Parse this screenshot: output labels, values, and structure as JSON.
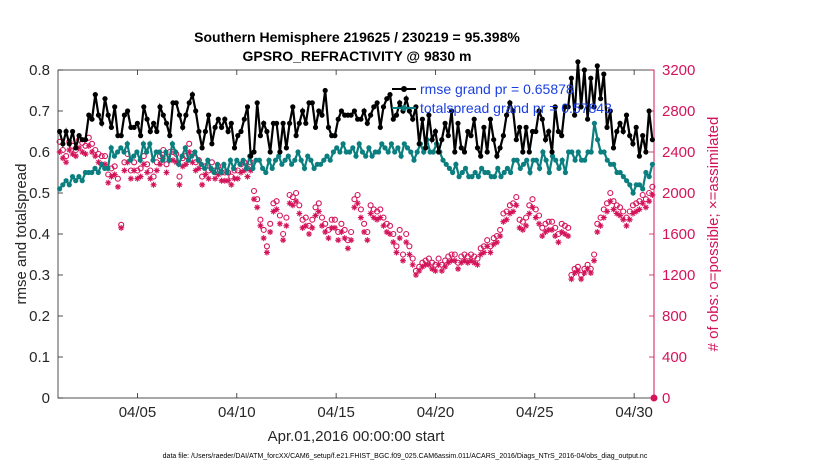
{
  "chart_data": {
    "type": "line",
    "title": "Southern Hemisphere 219625 / 230219 = 95.398%",
    "subtitle": "GPSRO_REFRACTIVITY @ 9830 m",
    "xlabel": "Apr.01,2016 00:00:00 start",
    "ylabel_left": "rmse and totalspread",
    "ylabel_right": "# of obs: o=possible; ×=assimilated",
    "ylim_left": [
      0,
      0.8
    ],
    "ylim_right": [
      0,
      3200
    ],
    "xlim_days": [
      1,
      31
    ],
    "yticks_left": [
      "0",
      "0.1",
      "0.2",
      "0.3",
      "0.4",
      "0.5",
      "0.6",
      "0.7",
      "0.8"
    ],
    "yticks_right": [
      "0",
      "400",
      "800",
      "1200",
      "1600",
      "2000",
      "2400",
      "2800",
      "3200"
    ],
    "xticks": [
      {
        "label": "04/05",
        "day": 5
      },
      {
        "label": "04/10",
        "day": 10
      },
      {
        "label": "04/15",
        "day": 15
      },
      {
        "label": "04/20",
        "day": 20
      },
      {
        "label": "04/25",
        "day": 25
      },
      {
        "label": "04/30",
        "day": 30
      }
    ],
    "legend": [
      {
        "label": "rmse grand pr = 0.65878",
        "color": "#000000"
      },
      {
        "label": "totalspread grand pr = 0.57843",
        "color": "#0b7f7f"
      }
    ],
    "series": [
      {
        "name": "rmse",
        "axis": "left",
        "color": "#000000",
        "values": [
          0.65,
          0.62,
          0.65,
          0.62,
          0.65,
          0.61,
          0.64,
          0.63,
          0.63,
          0.69,
          0.68,
          0.74,
          0.69,
          0.67,
          0.73,
          0.69,
          0.66,
          0.71,
          0.64,
          0.64,
          0.69,
          0.7,
          0.66,
          0.66,
          0.67,
          0.64,
          0.71,
          0.68,
          0.65,
          0.67,
          0.65,
          0.71,
          0.69,
          0.67,
          0.64,
          0.72,
          0.72,
          0.69,
          0.66,
          0.69,
          0.72,
          0.74,
          0.7,
          0.65,
          0.61,
          0.65,
          0.69,
          0.62,
          0.66,
          0.68,
          0.66,
          0.68,
          0.65,
          0.67,
          0.61,
          0.64,
          0.65,
          0.68,
          0.71,
          0.59,
          0.6,
          0.72,
          0.64,
          0.67,
          0.65,
          0.6,
          0.67,
          0.67,
          0.6,
          0.67,
          0.61,
          0.67,
          0.71,
          0.64,
          0.67,
          0.7,
          0.67,
          0.72,
          0.72,
          0.66,
          0.7,
          0.69,
          0.75,
          0.66,
          0.64,
          0.64,
          0.68,
          0.7,
          0.69,
          0.69,
          0.69,
          0.7,
          0.68,
          0.68,
          0.7,
          0.67,
          0.69,
          0.71,
          0.72,
          0.66,
          0.71,
          0.73,
          0.74,
          0.68,
          0.69,
          0.72,
          0.7,
          0.73,
          0.7,
          0.68,
          0.71,
          0.62,
          0.68,
          0.61,
          0.69,
          0.63,
          0.65,
          0.6,
          0.63,
          0.67,
          0.64,
          0.7,
          0.6,
          0.67,
          0.61,
          0.6,
          0.65,
          0.64,
          0.68,
          0.61,
          0.59,
          0.66,
          0.6,
          0.68,
          0.63,
          0.59,
          0.61,
          0.64,
          0.69,
          0.72,
          0.7,
          0.63,
          0.66,
          0.6,
          0.66,
          0.6,
          0.65,
          0.65,
          0.7,
          0.68,
          0.63,
          0.65,
          0.6,
          0.71,
          0.65,
          0.64,
          0.71,
          0.71,
          0.78,
          0.69,
          0.82,
          0.71,
          0.8,
          0.68,
          0.78,
          0.71,
          0.81,
          0.73,
          0.79,
          0.66,
          0.7,
          0.61,
          0.65,
          0.67,
          0.65,
          0.69,
          0.64,
          0.62,
          0.66,
          0.59,
          0.64,
          0.6,
          0.7,
          0.63
        ]
      },
      {
        "name": "totalspread",
        "axis": "left",
        "color": "#0b7f7f",
        "values": [
          0.51,
          0.52,
          0.53,
          0.52,
          0.54,
          0.53,
          0.54,
          0.53,
          0.55,
          0.55,
          0.55,
          0.56,
          0.55,
          0.57,
          0.56,
          0.56,
          0.61,
          0.59,
          0.6,
          0.61,
          0.6,
          0.62,
          0.58,
          0.59,
          0.6,
          0.58,
          0.62,
          0.6,
          0.62,
          0.58,
          0.6,
          0.6,
          0.58,
          0.6,
          0.58,
          0.62,
          0.6,
          0.57,
          0.59,
          0.61,
          0.58,
          0.59,
          0.6,
          0.58,
          0.57,
          0.56,
          0.58,
          0.56,
          0.55,
          0.57,
          0.55,
          0.57,
          0.55,
          0.58,
          0.56,
          0.58,
          0.57,
          0.58,
          0.56,
          0.59,
          0.56,
          0.58,
          0.58,
          0.56,
          0.55,
          0.58,
          0.56,
          0.58,
          0.59,
          0.57,
          0.58,
          0.59,
          0.57,
          0.58,
          0.6,
          0.58,
          0.56,
          0.59,
          0.58,
          0.56,
          0.57,
          0.57,
          0.58,
          0.59,
          0.58,
          0.6,
          0.61,
          0.6,
          0.62,
          0.6,
          0.6,
          0.61,
          0.59,
          0.62,
          0.6,
          0.59,
          0.61,
          0.59,
          0.6,
          0.6,
          0.62,
          0.61,
          0.6,
          0.62,
          0.6,
          0.61,
          0.59,
          0.62,
          0.61,
          0.6,
          0.58,
          0.6,
          0.62,
          0.6,
          0.63,
          0.6,
          0.6,
          0.62,
          0.6,
          0.58,
          0.57,
          0.56,
          0.55,
          0.57,
          0.54,
          0.55,
          0.56,
          0.54,
          0.54,
          0.55,
          0.54,
          0.56,
          0.55,
          0.55,
          0.54,
          0.54,
          0.56,
          0.54,
          0.55,
          0.56,
          0.55,
          0.58,
          0.58,
          0.56,
          0.57,
          0.58,
          0.55,
          0.58,
          0.58,
          0.56,
          0.6,
          0.58,
          0.55,
          0.59,
          0.58,
          0.56,
          0.58,
          0.55,
          0.6,
          0.6,
          0.58,
          0.6,
          0.58,
          0.58,
          0.6,
          0.6,
          0.67,
          0.63,
          0.6,
          0.6,
          0.58,
          0.57,
          0.57,
          0.55,
          0.55,
          0.54,
          0.53,
          0.52,
          0.5,
          0.52,
          0.52,
          0.51,
          0.55,
          0.54,
          0.57
        ]
      },
      {
        "name": "obs possible",
        "axis": "right",
        "color": "#d4145a",
        "marker": "o",
        "values": [
          2500,
          2420,
          2360,
          2500,
          2460,
          2420,
          2520,
          2490,
          2460,
          2540,
          2480,
          2420,
          2380,
          2360,
          2360,
          2180,
          2240,
          2260,
          2140,
          1690,
          2300,
          2380,
          2220,
          2300,
          2220,
          2240,
          2360,
          2280,
          2220,
          2160,
          2300,
          2360,
          2420,
          2280,
          2400,
          2400,
          2380,
          2160,
          2340,
          2360,
          2480,
          2380,
          2300,
          2320,
          2160,
          2260,
          2220,
          2300,
          2220,
          2260,
          2200,
          2200,
          2200,
          2160,
          2220,
          2220,
          2280,
          2300,
          2240,
          2300,
          2020,
          1940,
          1740,
          1640,
          1480,
          1700,
          1900,
          1920,
          1780,
          1600,
          1760,
          1980,
          1960,
          2000,
          1880,
          1740,
          1760,
          1680,
          1740,
          1860,
          1900,
          1760,
          1700,
          1640,
          1740,
          1740,
          1620,
          1700,
          1640,
          1540,
          1620,
          1940,
          1980,
          1840,
          1700,
          1620,
          1880,
          1840,
          1820,
          1840,
          1760,
          1700,
          1680,
          1600,
          1480,
          1640,
          1400,
          1600,
          1480,
          1360,
          1240,
          1280,
          1320,
          1340,
          1360,
          1320,
          1300,
          1360,
          1300,
          1340,
          1380,
          1400,
          1400,
          1320,
          1380,
          1400,
          1380,
          1400,
          1380,
          1360,
          1460,
          1480,
          1540,
          1480,
          1560,
          1580,
          1640,
          1800,
          1820,
          1880,
          1900,
          1960,
          1740,
          1720,
          1760,
          1880,
          1940,
          1840,
          1780,
          1660,
          1700,
          1720,
          1720,
          1660,
          1600,
          1700,
          1680,
          1660,
          1200,
          1260,
          1280,
          1200,
          1260,
          1300,
          1260,
          1400,
          1700,
          1760,
          1840,
          1900,
          2000,
          1920,
          1880,
          1860,
          1820,
          1760,
          1820,
          1880,
          1900,
          1920,
          1980,
          1940,
          2000,
          2060
        ]
      },
      {
        "name": "obs assimilated",
        "axis": "right",
        "color": "#d4145a",
        "marker": "*",
        "values": [
          2400,
          2340,
          2300,
          2420,
          2380,
          2360,
          2440,
          2400,
          2380,
          2460,
          2400,
          2360,
          2300,
          2280,
          2280,
          2100,
          2160,
          2180,
          2060,
          1660,
          2220,
          2300,
          2140,
          2220,
          2140,
          2160,
          2280,
          2200,
          2140,
          2080,
          2220,
          2280,
          2340,
          2200,
          2320,
          2320,
          2300,
          2080,
          2260,
          2280,
          2400,
          2300,
          2220,
          2240,
          2080,
          2180,
          2140,
          2220,
          2140,
          2180,
          2120,
          2120,
          2120,
          2080,
          2140,
          2140,
          2200,
          2220,
          2160,
          2220,
          1940,
          1860,
          1680,
          1560,
          1420,
          1620,
          1820,
          1840,
          1700,
          1540,
          1680,
          1900,
          1880,
          1920,
          1800,
          1660,
          1680,
          1600,
          1660,
          1780,
          1820,
          1680,
          1620,
          1560,
          1660,
          1660,
          1540,
          1620,
          1560,
          1460,
          1540,
          1860,
          1900,
          1760,
          1620,
          1540,
          1800,
          1760,
          1740,
          1760,
          1680,
          1620,
          1600,
          1520,
          1420,
          1560,
          1340,
          1520,
          1400,
          1300,
          1200,
          1240,
          1280,
          1300,
          1300,
          1260,
          1240,
          1300,
          1240,
          1280,
          1320,
          1340,
          1340,
          1260,
          1320,
          1340,
          1320,
          1340,
          1320,
          1300,
          1400,
          1420,
          1480,
          1420,
          1500,
          1520,
          1580,
          1720,
          1740,
          1800,
          1820,
          1880,
          1660,
          1640,
          1680,
          1800,
          1860,
          1760,
          1700,
          1580,
          1620,
          1640,
          1640,
          1580,
          1520,
          1620,
          1600,
          1580,
          1160,
          1220,
          1240,
          1160,
          1220,
          1260,
          1220,
          1340,
          1620,
          1680,
          1760,
          1820,
          1920,
          1840,
          1800,
          1780,
          1740,
          1680,
          1740,
          1800,
          1820,
          1840,
          1900,
          1860,
          1920,
          1980
        ]
      }
    ],
    "footer": "data file: /Users/raeder/DAI/ATM_forcXX/CAM6_setup/f.e21.FHIST_BGC.f09_025.CAM6assim.011/ACARS_2016/Diags_NTrS_2016-04/obs_diag_output.nc"
  }
}
